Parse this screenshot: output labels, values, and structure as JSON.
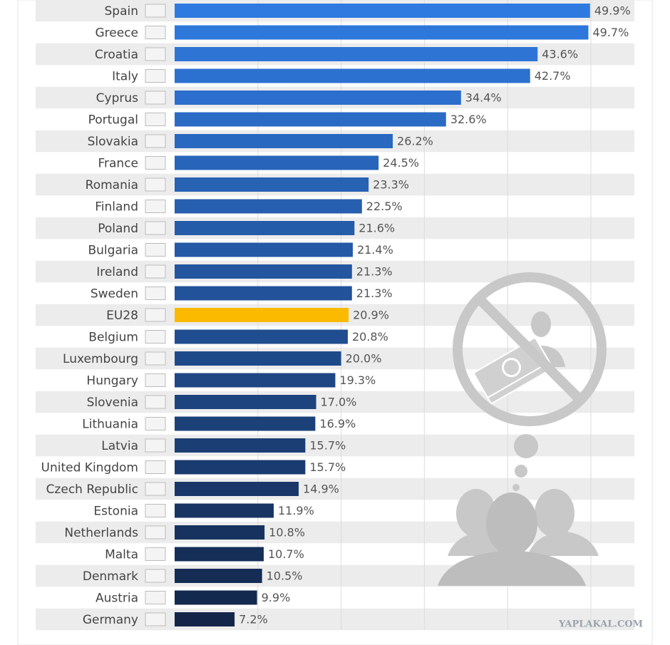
{
  "chart_data": {
    "type": "bar",
    "orientation": "horizontal",
    "categories": [
      "Spain",
      "Greece",
      "Croatia",
      "Italy",
      "Cyprus",
      "Portugal",
      "Slovakia",
      "France",
      "Romania",
      "Finland",
      "Poland",
      "Bulgaria",
      "Ireland",
      "Sweden",
      "EU28",
      "Belgium",
      "Luxembourg",
      "Hungary",
      "Slovenia",
      "Lithuania",
      "Latvia",
      "United Kingdom",
      "Czech Republic",
      "Estonia",
      "Netherlands",
      "Malta",
      "Denmark",
      "Austria",
      "Germany"
    ],
    "values": [
      49.9,
      49.7,
      43.6,
      42.7,
      34.4,
      32.6,
      26.2,
      24.5,
      23.3,
      22.5,
      21.6,
      21.4,
      21.3,
      21.3,
      20.9,
      20.8,
      20.0,
      19.3,
      17.0,
      16.9,
      15.7,
      15.7,
      14.9,
      11.9,
      10.8,
      10.7,
      10.5,
      9.9,
      7.2
    ],
    "value_labels": [
      "49.9%",
      "49.7%",
      "43.6%",
      "42.7%",
      "34.4%",
      "32.6%",
      "26.2%",
      "24.5%",
      "23.3%",
      "22.5%",
      "21.6%",
      "21.4%",
      "21.3%",
      "21.3%",
      "20.9%",
      "20.8%",
      "20.0%",
      "19.3%",
      "17.0%",
      "16.9%",
      "15.7%",
      "15.7%",
      "14.9%",
      "11.9%",
      "10.8%",
      "10.7%",
      "10.5%",
      "9.9%",
      "7.2%"
    ],
    "colors": [
      "#2f7ae0",
      "#2e77db",
      "#2d74d5",
      "#2c71d0",
      "#2b6ecb",
      "#2a6bc5",
      "#2968c0",
      "#2865ba",
      "#2762b5",
      "#265faf",
      "#255caa",
      "#2459a5",
      "#23569f",
      "#22539a",
      "#fbb900",
      "#204d8f",
      "#1f4a8a",
      "#1e4784",
      "#1d447f",
      "#1c4179",
      "#1b3e74",
      "#1a3b6f",
      "#193869",
      "#183564",
      "#17325e",
      "#162f59",
      "#152c54",
      "#14294e",
      "#132649"
    ],
    "xlim": [
      0,
      50
    ],
    "xticks": [
      10,
      20,
      30,
      40,
      50
    ],
    "grid": true
  },
  "watermark": "YAPLAKAL.COM"
}
